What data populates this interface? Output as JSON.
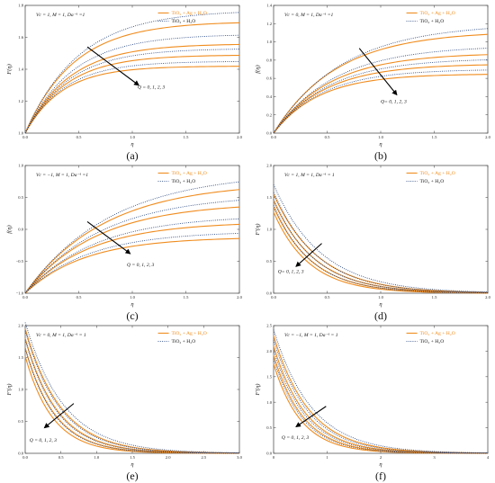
{
  "colors": {
    "nano": "#f08c1e",
    "base": "#1f3f78",
    "frame": "#555555"
  },
  "legend_labels": {
    "hybrid": "TiO₂ + Ag + H₂O",
    "base": "TiO₂ + H₂O"
  },
  "chart_data": [
    {
      "type": "line",
      "label": "(a)",
      "params": "Vc = 1, M = 1, Da⁻¹ =1",
      "xlabel": "η",
      "ylabel": "F(η)",
      "xlim": [
        0,
        2
      ],
      "ylim": [
        1,
        1.8
      ],
      "xticks": [
        "0.0",
        "0.5",
        "1.0",
        "1.5",
        "2.0"
      ],
      "xtick_values": [
        0,
        0.5,
        1,
        1.5,
        2
      ],
      "yticks": [
        "1.0",
        "1.2",
        "1.4",
        "1.6",
        "1.8"
      ],
      "ytick_values": [
        1,
        1.2,
        1.4,
        1.6,
        1.8
      ],
      "annotation": "Q = 0, 1, 2, 3",
      "arrow": {
        "from": [
          0.58,
          1.54
        ],
        "to": [
          1.06,
          1.3
        ]
      },
      "label_at": [
        1.05,
        1.28
      ],
      "form": "exp",
      "series": [
        {
          "name": "TiO₂ + Ag + H₂O",
          "style": "solid",
          "start": 1.0,
          "end": [
            1.7,
            1.56,
            1.49,
            1.42
          ],
          "k": [
            2.2,
            2.4,
            2.6,
            2.9
          ]
        },
        {
          "name": "TiO₂ + H₂O",
          "style": "dotted",
          "start": 1.0,
          "end": [
            1.77,
            1.62,
            1.53,
            1.45
          ],
          "k": [
            2.0,
            2.25,
            2.45,
            2.75
          ]
        }
      ],
      "legend": "top-right"
    },
    {
      "type": "line",
      "label": "(b)",
      "params": "Vc = 0, M = 1, Da⁻¹ =1",
      "xlabel": "η",
      "ylabel": "f(η)",
      "xlim": [
        0,
        2
      ],
      "ylim": [
        0,
        1.4
      ],
      "xticks": [
        "0.0",
        "0.5",
        "1.0",
        "1.5",
        "2.0"
      ],
      "xtick_values": [
        0,
        0.5,
        1,
        1.5,
        2
      ],
      "yticks": [
        "0.0",
        "0.2",
        "0.4",
        "0.6",
        "0.8",
        "1.0",
        "1.2",
        "1.4"
      ],
      "ytick_values": [
        0,
        0.2,
        0.4,
        0.6,
        0.8,
        1.0,
        1.2,
        1.4
      ],
      "annotation": "Q=  0, 1, 2, 3",
      "arrow": {
        "from": [
          0.8,
          0.93
        ],
        "to": [
          1.15,
          0.42
        ]
      },
      "label_at": [
        1.0,
        0.33
      ],
      "form": "exp",
      "series": [
        {
          "name": "TiO₂ + Ag + H₂O",
          "style": "solid",
          "start": 0.0,
          "end": [
            1.12,
            0.88,
            0.76,
            0.65
          ],
          "k": [
            1.7,
            1.9,
            2.1,
            2.35
          ]
        },
        {
          "name": "TiO₂ + H₂O",
          "style": "dotted",
          "start": 0.0,
          "end": [
            1.2,
            0.96,
            0.82,
            0.7
          ],
          "k": [
            1.55,
            1.75,
            1.95,
            2.2
          ]
        }
      ],
      "legend": "top-right"
    },
    {
      "type": "line",
      "label": "(c)",
      "params": "Vc = −1, M = 1, Da⁻¹ =1",
      "xlabel": "η",
      "ylabel": "f(η)",
      "xlim": [
        0,
        2
      ],
      "ylim": [
        -1,
        1
      ],
      "xticks": [
        "0.0",
        "0.5",
        "1.0",
        "1.5",
        "2.0"
      ],
      "xtick_values": [
        0,
        0.5,
        1,
        1.5,
        2
      ],
      "yticks": [
        "−1.0",
        "−0.5",
        "0.0",
        "0.5",
        "1.0"
      ],
      "ytick_values": [
        -1,
        -0.5,
        0,
        0.5,
        1
      ],
      "annotation": "Q = 0, 1, 2, 3",
      "arrow": {
        "from": [
          0.58,
          0.12
        ],
        "to": [
          0.98,
          -0.38
        ]
      },
      "label_at": [
        0.95,
        -0.58
      ],
      "form": "exp",
      "series": [
        {
          "name": "TiO₂ + Ag + H₂O",
          "style": "solid",
          "start": -1.0,
          "end": [
            0.74,
            0.42,
            0.12,
            -0.12
          ],
          "k": [
            1.35,
            1.5,
            1.65,
            1.8
          ]
        },
        {
          "name": "TiO₂ + H₂O",
          "style": "dotted",
          "start": -1.0,
          "end": [
            0.9,
            0.55,
            0.22,
            -0.03
          ],
          "k": [
            1.25,
            1.4,
            1.55,
            1.7
          ]
        }
      ],
      "legend": "top-right"
    },
    {
      "type": "line",
      "label": "(d)",
      "params": "Vc = 1, M = 1, Da⁻¹ = 1",
      "xlabel": "η",
      "ylabel": "F′(η)",
      "xlim": [
        0,
        2
      ],
      "ylim": [
        0,
        2
      ],
      "xticks": [
        "0.0",
        "0.5",
        "1.0",
        "1.5",
        "2.0"
      ],
      "xtick_values": [
        0,
        0.5,
        1,
        1.5,
        2
      ],
      "yticks": [
        "0.0",
        "0.5",
        "1.0",
        "1.5",
        "2.0"
      ],
      "ytick_values": [
        0,
        0.5,
        1,
        1.5,
        2
      ],
      "annotation": "Q=  0, 1, 2, 3",
      "arrow": {
        "from": [
          0.45,
          0.78
        ],
        "to": [
          0.21,
          0.42
        ]
      },
      "label_at": [
        0.04,
        0.32
      ],
      "form": "decay",
      "series": [
        {
          "name": "TiO₂ + Ag + H₂O",
          "style": "solid",
          "start": [
            1.55,
            1.45,
            1.35,
            1.27
          ],
          "end": 0,
          "k": [
            2.4,
            2.6,
            2.8,
            3.0
          ]
        },
        {
          "name": "TiO₂ + H₂O",
          "style": "dotted",
          "start": [
            1.7,
            1.58,
            1.47,
            1.38
          ],
          "end": 0,
          "k": [
            2.25,
            2.45,
            2.65,
            2.85
          ]
        }
      ],
      "legend": "top-right"
    },
    {
      "type": "line",
      "label": "(e)",
      "params": "Vc = 0, M = 1, Da⁻¹ = 1",
      "xlabel": "η",
      "ylabel": "F′(η)",
      "xlim": [
        0,
        3
      ],
      "ylim": [
        0,
        2
      ],
      "xticks": [
        "0.0",
        "0.5",
        "1.0",
        "1.5",
        "2.0",
        "2.5",
        "3.0"
      ],
      "xtick_values": [
        0,
        0.5,
        1,
        1.5,
        2,
        2.5,
        3
      ],
      "yticks": [
        "0.0",
        "0.5",
        "1.0",
        "1.5",
        "2.0"
      ],
      "ytick_values": [
        0,
        0.5,
        1,
        1.5,
        2
      ],
      "annotation": "Q =  0, 1, 2, 3",
      "arrow": {
        "from": [
          0.68,
          0.78
        ],
        "to": [
          0.27,
          0.4
        ]
      },
      "label_at": [
        0.06,
        0.18
      ],
      "form": "decay",
      "series": [
        {
          "name": "TiO₂ + Ag + H₂O",
          "style": "solid",
          "start": [
            1.95,
            1.8,
            1.65,
            1.52
          ],
          "end": 0,
          "k": [
            2.0,
            2.2,
            2.4,
            2.6
          ]
        },
        {
          "name": "TiO₂ + H₂O",
          "style": "dotted",
          "start": [
            2.05,
            1.92,
            1.78,
            1.64
          ],
          "end": 0,
          "k": [
            1.85,
            2.05,
            2.25,
            2.45
          ]
        }
      ],
      "legend": "top-right"
    },
    {
      "type": "line",
      "label": "(f)",
      "params": "Vc = −1, M = 1, Da⁻¹ = 1",
      "xlabel": "η",
      "ylabel": "F′(η)",
      "xlim": [
        0,
        4
      ],
      "ylim": [
        0,
        2.5
      ],
      "xticks": [
        "0",
        "1",
        "2",
        "3",
        "4"
      ],
      "xtick_values": [
        0,
        1,
        2,
        3,
        4
      ],
      "yticks": [
        "0.0",
        "0.5",
        "1.0",
        "1.5",
        "2.0",
        "2.5"
      ],
      "ytick_values": [
        0,
        0.5,
        1,
        1.5,
        2,
        2.5
      ],
      "annotation": "Q =  0, 1, 2, 3",
      "arrow": {
        "from": [
          0.98,
          0.92
        ],
        "to": [
          0.42,
          0.52
        ]
      },
      "label_at": [
        0.15,
        0.28
      ],
      "form": "decay",
      "series": [
        {
          "name": "TiO₂ + Ag + H₂O",
          "style": "solid",
          "start": [
            2.3,
            2.1,
            1.92,
            1.75
          ],
          "end": 0,
          "k": [
            1.5,
            1.65,
            1.8,
            1.95
          ]
        },
        {
          "name": "TiO₂ + H₂O",
          "style": "dotted",
          "start": [
            2.42,
            2.22,
            2.02,
            1.85
          ],
          "end": 0,
          "k": [
            1.4,
            1.55,
            1.7,
            1.85
          ]
        }
      ],
      "legend": "top-right"
    }
  ]
}
